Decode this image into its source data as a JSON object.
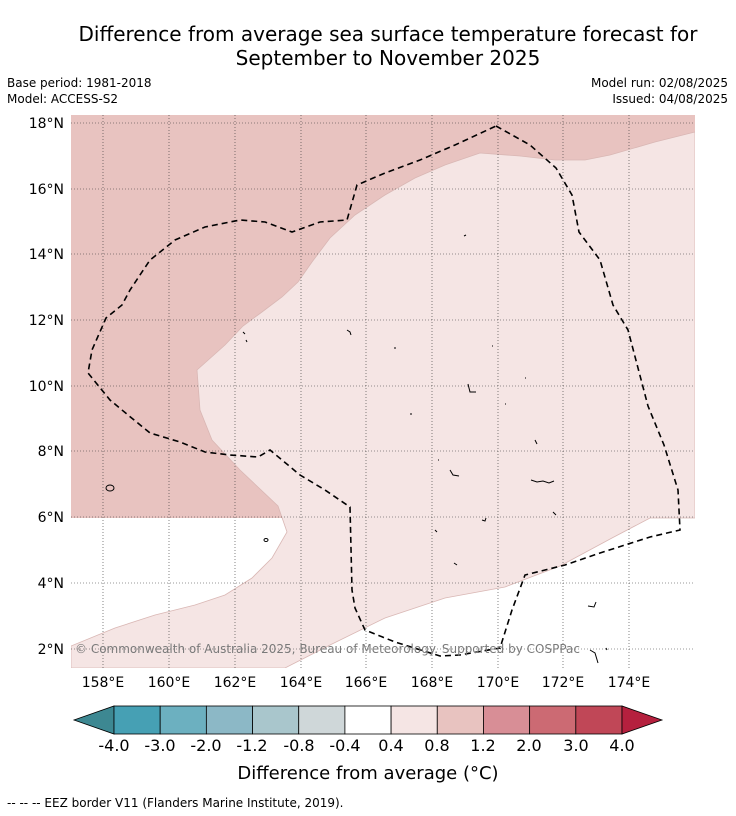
{
  "title_line1": "Difference from average sea surface temperature forecast for",
  "title_line2": "September to November 2025",
  "meta": {
    "base_period": "Base period: 1981-2018",
    "model": "Model: ACCESS-S2",
    "model_run": "Model run: 02/08/2025",
    "issued": "Issued: 04/08/2025"
  },
  "lat_labels": [
    "18°N",
    "16°N",
    "14°N",
    "12°N",
    "10°N",
    "8°N",
    "6°N",
    "4°N",
    "2°N"
  ],
  "lon_labels": [
    "158°E",
    "160°E",
    "162°E",
    "164°E",
    "166°E",
    "168°E",
    "170°E",
    "172°E",
    "174°E"
  ],
  "copyright": "© Commonwealth of Australia 2025, Bureau of Meteorology. Supported by COSPPac",
  "colorbar": {
    "title": "Difference from average (°C)",
    "tick_labels": [
      "-4.0",
      "-3.0",
      "-2.0",
      "-1.2",
      "-0.8",
      "-0.4",
      "0.4",
      "0.8",
      "1.2",
      "2.0",
      "3.0",
      "4.0"
    ],
    "colors": [
      "#46a0b4",
      "#6cb0c0",
      "#8cb8c6",
      "#a9c6cc",
      "#cfd7d9",
      "#ffffff",
      "#f5e5e4",
      "#e8c3c0",
      "#d88e96",
      "#cc6a73",
      "#c04757"
    ],
    "under_color": "#3d8892",
    "over_color": "#b5203e"
  },
  "legend_note": "--  --  -- EEZ border V11 (Flanders Marine Institute, 2019)."
}
